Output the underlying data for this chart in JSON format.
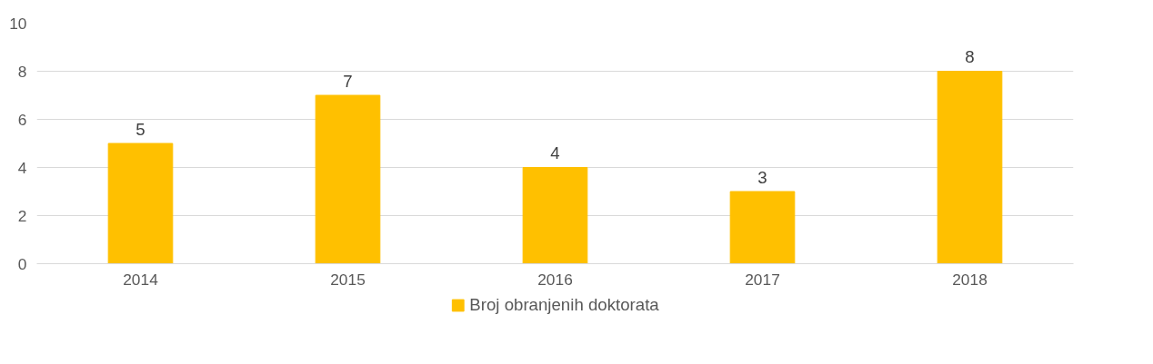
{
  "chart_data": {
    "type": "bar",
    "categories": [
      "2014",
      "2015",
      "2016",
      "2017",
      "2018"
    ],
    "series": [
      {
        "name": "Broj obranjenih doktorata",
        "color": "#ffc000",
        "values": [
          5,
          7,
          4,
          3,
          8
        ]
      }
    ],
    "ylim": [
      0,
      10
    ],
    "yticks": [
      0,
      2,
      4,
      6,
      8,
      10
    ],
    "grid": "y",
    "legend": "bottom",
    "data_labels": true
  }
}
